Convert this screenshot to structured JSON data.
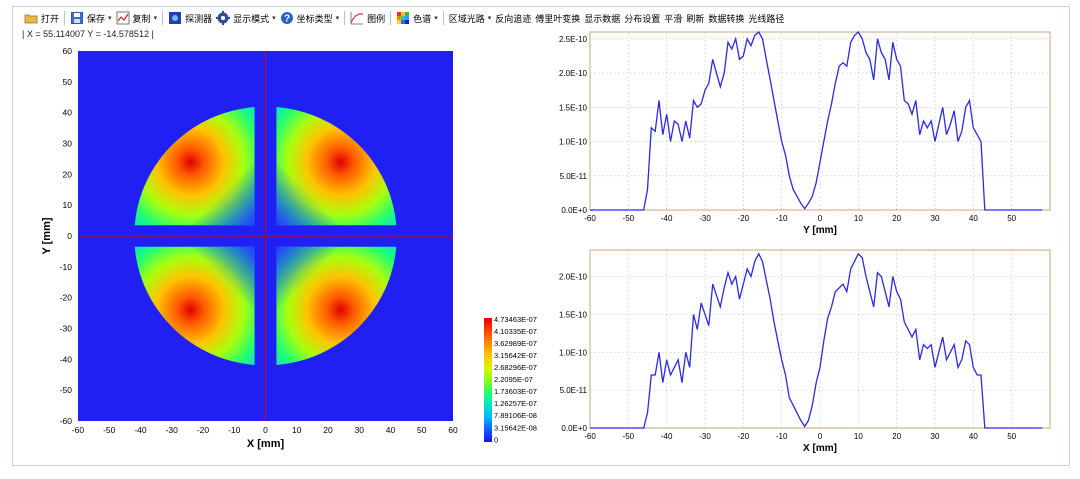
{
  "toolbar": {
    "open": "打开",
    "save": "保存",
    "copy": "复制",
    "detector": "探测器",
    "display_mode": "显示模式",
    "coord_type": "坐标类型",
    "legend": "图例",
    "colormap": "色谱",
    "region_path": "区域光路",
    "reverse_trace": "反向追迹",
    "fourier": "傅里叶变换",
    "show_data": "显示数据",
    "dist_settings": "分布设置",
    "smooth": "平滑",
    "refresh": "刷新",
    "data_convert": "数据转换",
    "ray_path": "光线路径"
  },
  "coord_readout": "| X = 55.114007   Y = -14.578512 |",
  "heatmap": {
    "xlabel": "X [mm]",
    "ylabel": "Y [mm]",
    "xticks": [
      "-60",
      "-50",
      "-40",
      "-30",
      "-20",
      "-10",
      "0",
      "10",
      "20",
      "30",
      "40",
      "50",
      "60"
    ],
    "yticks": [
      "60",
      "50",
      "40",
      "30",
      "20",
      "10",
      "0",
      "-10",
      "-20",
      "-30",
      "-40",
      "-50",
      "-60"
    ],
    "colorbar_labels": [
      "4.73463E-07",
      "4.10335E-07",
      "3.62989E-07",
      "3.15642E-07",
      "2.68296E-07",
      "2.2095E-07",
      "1.73603E-07",
      "1.26257E-07",
      "7.89106E-08",
      "3.15642E-08",
      "0"
    ],
    "colors": [
      "#1a10ff",
      "#0b5cff",
      "#00b7ff",
      "#00e6c9",
      "#24ff6e",
      "#8cff16",
      "#ddf300",
      "#ffc300",
      "#ff7b00",
      "#ff3300",
      "#e00000"
    ],
    "crosshair_color": "#d40000",
    "background_color": "#2020f4"
  },
  "chart_data": [
    {
      "type": "line",
      "xlabel": "Y [mm]",
      "xlim": [
        -60,
        60
      ],
      "ylim": [
        0,
        2.6e-10
      ],
      "xticks": [
        "-60",
        "-50",
        "-40",
        "-30",
        "-20",
        "-10",
        "0",
        "10",
        "20",
        "30",
        "40",
        "50"
      ],
      "yticks": [
        "0.0E+0",
        "5.0E-11",
        "1.0E-10",
        "1.5E-10",
        "2.0E-10",
        "2.5E-10"
      ],
      "x": [
        -60,
        -46,
        -45,
        -44,
        -43,
        -42,
        -41,
        -40,
        -39,
        -38,
        -37,
        -36,
        -35,
        -34,
        -33,
        -32,
        -31,
        -30,
        -29,
        -28,
        -27,
        -26,
        -25,
        -24,
        -23,
        -22,
        -21,
        -20,
        -19,
        -18,
        -17,
        -16,
        -15,
        -14,
        -13,
        -12,
        -11,
        -10,
        -9,
        -8,
        -7,
        -6,
        -5,
        -4,
        -3,
        -2,
        -1,
        0,
        1,
        2,
        3,
        4,
        5,
        6,
        7,
        8,
        9,
        10,
        11,
        12,
        13,
        14,
        15,
        16,
        17,
        18,
        19,
        20,
        21,
        22,
        23,
        24,
        25,
        26,
        27,
        28,
        29,
        30,
        31,
        32,
        33,
        34,
        35,
        36,
        37,
        38,
        39,
        40,
        41,
        42,
        43,
        44,
        45,
        58
      ],
      "y": [
        0,
        0,
        3e-11,
        1.2e-10,
        1.15e-10,
        1.6e-10,
        1.1e-10,
        1.4e-10,
        1e-10,
        1.3e-10,
        1.25e-10,
        1e-10,
        1.3e-10,
        1.05e-10,
        1.6e-10,
        1.5e-10,
        1.55e-10,
        1.75e-10,
        1.85e-10,
        2.2e-10,
        2e-10,
        1.8e-10,
        2e-10,
        2.45e-10,
        2.35e-10,
        2.5e-10,
        2.2e-10,
        2.25e-10,
        2.5e-10,
        2.4e-10,
        2.55e-10,
        2.6e-10,
        2.5e-10,
        2.2e-10,
        1.9e-10,
        1.6e-10,
        1.3e-10,
        1e-10,
        8e-11,
        5e-11,
        3e-11,
        2e-11,
        1e-11,
        2e-12,
        1e-11,
        2e-11,
        4e-11,
        7e-11,
        1e-10,
        1.3e-10,
        1.55e-10,
        1.85e-10,
        2.1e-10,
        2.15e-10,
        2.1e-10,
        2.45e-10,
        2.55e-10,
        2.6e-10,
        2.5e-10,
        2.3e-10,
        2.2e-10,
        1.9e-10,
        2.5e-10,
        2.3e-10,
        2.2e-10,
        1.9e-10,
        2.45e-10,
        2.2e-10,
        2.1e-10,
        1.6e-10,
        1.55e-10,
        1.4e-10,
        1.6e-10,
        1.1e-10,
        1.3e-10,
        1.2e-10,
        1.3e-10,
        1e-10,
        1.25e-10,
        1.5e-10,
        1.1e-10,
        1.25e-10,
        1.45e-10,
        1e-10,
        1.15e-10,
        1.5e-10,
        1.6e-10,
        1.2e-10,
        1.1e-10,
        1e-10,
        0,
        0,
        0,
        0
      ]
    },
    {
      "type": "line",
      "xlabel": "X [mm]",
      "xlim": [
        -60,
        60
      ],
      "ylim": [
        0,
        2.35e-10
      ],
      "xticks": [
        "-60",
        "-50",
        "-40",
        "-30",
        "-20",
        "-10",
        "0",
        "10",
        "20",
        "30",
        "40",
        "50"
      ],
      "yticks": [
        "0.0E+0",
        "5.0E-11",
        "1.0E-10",
        "1.5E-10",
        "2.0E-10"
      ],
      "x": [
        -60,
        -46,
        -45,
        -44,
        -43,
        -42,
        -41,
        -40,
        -39,
        -38,
        -37,
        -36,
        -35,
        -34,
        -33,
        -32,
        -31,
        -30,
        -29,
        -28,
        -27,
        -26,
        -25,
        -24,
        -23,
        -22,
        -21,
        -20,
        -19,
        -18,
        -17,
        -16,
        -15,
        -14,
        -13,
        -12,
        -11,
        -10,
        -9,
        -8,
        -7,
        -6,
        -5,
        -4,
        -3,
        -2,
        -1,
        0,
        1,
        2,
        3,
        4,
        5,
        6,
        7,
        8,
        9,
        10,
        11,
        12,
        13,
        14,
        15,
        16,
        17,
        18,
        19,
        20,
        21,
        22,
        23,
        24,
        25,
        26,
        27,
        28,
        29,
        30,
        31,
        32,
        33,
        34,
        35,
        36,
        37,
        38,
        39,
        40,
        41,
        42,
        43,
        44,
        45,
        58
      ],
      "y": [
        0,
        0,
        2e-11,
        7e-11,
        7e-11,
        1e-10,
        6e-11,
        9e-11,
        7e-11,
        8e-11,
        9e-11,
        6e-11,
        1e-10,
        8e-11,
        1.5e-10,
        1.3e-10,
        1.65e-10,
        1.5e-10,
        1.35e-10,
        1.9e-10,
        1.75e-10,
        1.6e-10,
        1.85e-10,
        2.05e-10,
        1.9e-10,
        2e-10,
        1.7e-10,
        1.9e-10,
        2.1e-10,
        2e-10,
        2.2e-10,
        2.3e-10,
        2.2e-10,
        1.95e-10,
        1.7e-10,
        1.4e-10,
        1.15e-10,
        9e-11,
        7e-11,
        4e-11,
        3e-11,
        2e-11,
        1e-11,
        2e-12,
        1e-11,
        3e-11,
        6e-11,
        8e-11,
        1.15e-10,
        1.45e-10,
        1.6e-10,
        1.8e-10,
        1.85e-10,
        1.9e-10,
        1.8e-10,
        2.1e-10,
        2.2e-10,
        2.3e-10,
        2.25e-10,
        2e-10,
        1.8e-10,
        1.6e-10,
        2.05e-10,
        2e-10,
        1.8e-10,
        1.6e-10,
        2e-10,
        1.8e-10,
        1.7e-10,
        1.4e-10,
        1.3e-10,
        1.2e-10,
        1.3e-10,
        9e-11,
        1.1e-10,
        1.05e-10,
        1.1e-10,
        8e-11,
        1e-10,
        1.2e-10,
        9e-11,
        1e-10,
        1.1e-10,
        8e-11,
        9e-11,
        1.15e-10,
        1.1e-10,
        8e-11,
        7e-11,
        7e-11,
        0,
        0,
        0,
        0
      ]
    }
  ]
}
